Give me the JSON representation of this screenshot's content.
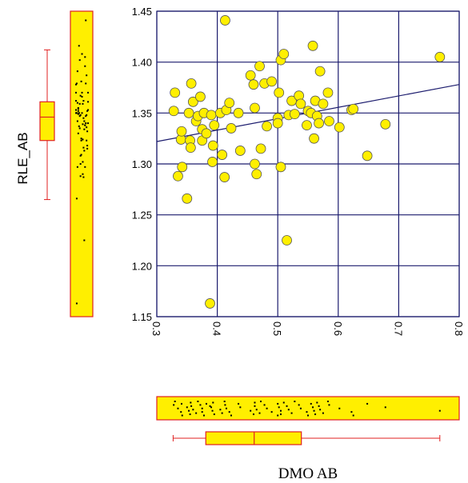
{
  "chart_data": {
    "type": "scatter",
    "title": "",
    "xlabel": "DMO AB",
    "ylabel": "RLE_AB",
    "xlim": [
      0.3,
      0.8
    ],
    "ylim": [
      1.15,
      1.45
    ],
    "xticks": [
      "0.3",
      "0.4",
      "0.5",
      "0.6",
      "0.7",
      "0.8"
    ],
    "yticks": [
      "1.15",
      "1.20",
      "1.25",
      "1.30",
      "1.35",
      "1.40",
      "1.45"
    ],
    "grid": true,
    "trendline": {
      "x": [
        0.3,
        0.8
      ],
      "y": [
        1.322,
        1.378
      ]
    },
    "marginal_boxplots": {
      "x": {
        "min": 0.327,
        "q1": 0.381,
        "median": 0.461,
        "q3": 0.539,
        "max": 0.768
      },
      "y": {
        "min": 1.265,
        "q1": 1.323,
        "median": 1.346,
        "q3": 1.361,
        "max": 1.412
      }
    },
    "colors": {
      "point_fill": "#ffef00",
      "point_stroke": "#555555",
      "grid": "#1c1c6e",
      "trend": "#1c1c6e",
      "box_fill": "#ffef00",
      "box_stroke": "#e02020"
    },
    "points": [
      [
        0.33,
        1.37
      ],
      [
        0.328,
        1.352
      ],
      [
        0.335,
        1.288
      ],
      [
        0.34,
        1.324
      ],
      [
        0.342,
        1.297
      ],
      [
        0.341,
        1.332
      ],
      [
        0.35,
        1.266
      ],
      [
        0.353,
        1.35
      ],
      [
        0.355,
        1.323
      ],
      [
        0.356,
        1.316
      ],
      [
        0.357,
        1.379
      ],
      [
        0.36,
        1.361
      ],
      [
        0.365,
        1.342
      ],
      [
        0.368,
        1.347
      ],
      [
        0.372,
        1.366
      ],
      [
        0.375,
        1.334
      ],
      [
        0.375,
        1.323
      ],
      [
        0.378,
        1.35
      ],
      [
        0.382,
        1.33
      ],
      [
        0.39,
        1.348
      ],
      [
        0.392,
        1.302
      ],
      [
        0.395,
        1.338
      ],
      [
        0.393,
        1.318
      ],
      [
        0.388,
        1.163
      ],
      [
        0.405,
        1.35
      ],
      [
        0.408,
        1.309
      ],
      [
        0.412,
        1.287
      ],
      [
        0.413,
        1.441
      ],
      [
        0.415,
        1.353
      ],
      [
        0.42,
        1.36
      ],
      [
        0.423,
        1.335
      ],
      [
        0.435,
        1.35
      ],
      [
        0.438,
        1.313
      ],
      [
        0.455,
        1.387
      ],
      [
        0.46,
        1.378
      ],
      [
        0.462,
        1.355
      ],
      [
        0.462,
        1.3
      ],
      [
        0.465,
        1.29
      ],
      [
        0.47,
        1.396
      ],
      [
        0.472,
        1.315
      ],
      [
        0.478,
        1.379
      ],
      [
        0.482,
        1.337
      ],
      [
        0.49,
        1.381
      ],
      [
        0.5,
        1.345
      ],
      [
        0.5,
        1.34
      ],
      [
        0.502,
        1.37
      ],
      [
        0.505,
        1.297
      ],
      [
        0.505,
        1.402
      ],
      [
        0.51,
        1.408
      ],
      [
        0.515,
        1.225
      ],
      [
        0.518,
        1.348
      ],
      [
        0.523,
        1.362
      ],
      [
        0.528,
        1.349
      ],
      [
        0.535,
        1.367
      ],
      [
        0.538,
        1.359
      ],
      [
        0.548,
        1.338
      ],
      [
        0.55,
        1.352
      ],
      [
        0.555,
        1.35
      ],
      [
        0.558,
        1.416
      ],
      [
        0.56,
        1.325
      ],
      [
        0.562,
        1.362
      ],
      [
        0.565,
        1.347
      ],
      [
        0.568,
        1.34
      ],
      [
        0.57,
        1.391
      ],
      [
        0.575,
        1.359
      ],
      [
        0.583,
        1.37
      ],
      [
        0.585,
        1.342
      ],
      [
        0.602,
        1.336
      ],
      [
        0.622,
        1.353
      ],
      [
        0.625,
        1.354
      ],
      [
        0.648,
        1.308
      ],
      [
        0.678,
        1.339
      ],
      [
        0.768,
        1.405
      ]
    ]
  }
}
